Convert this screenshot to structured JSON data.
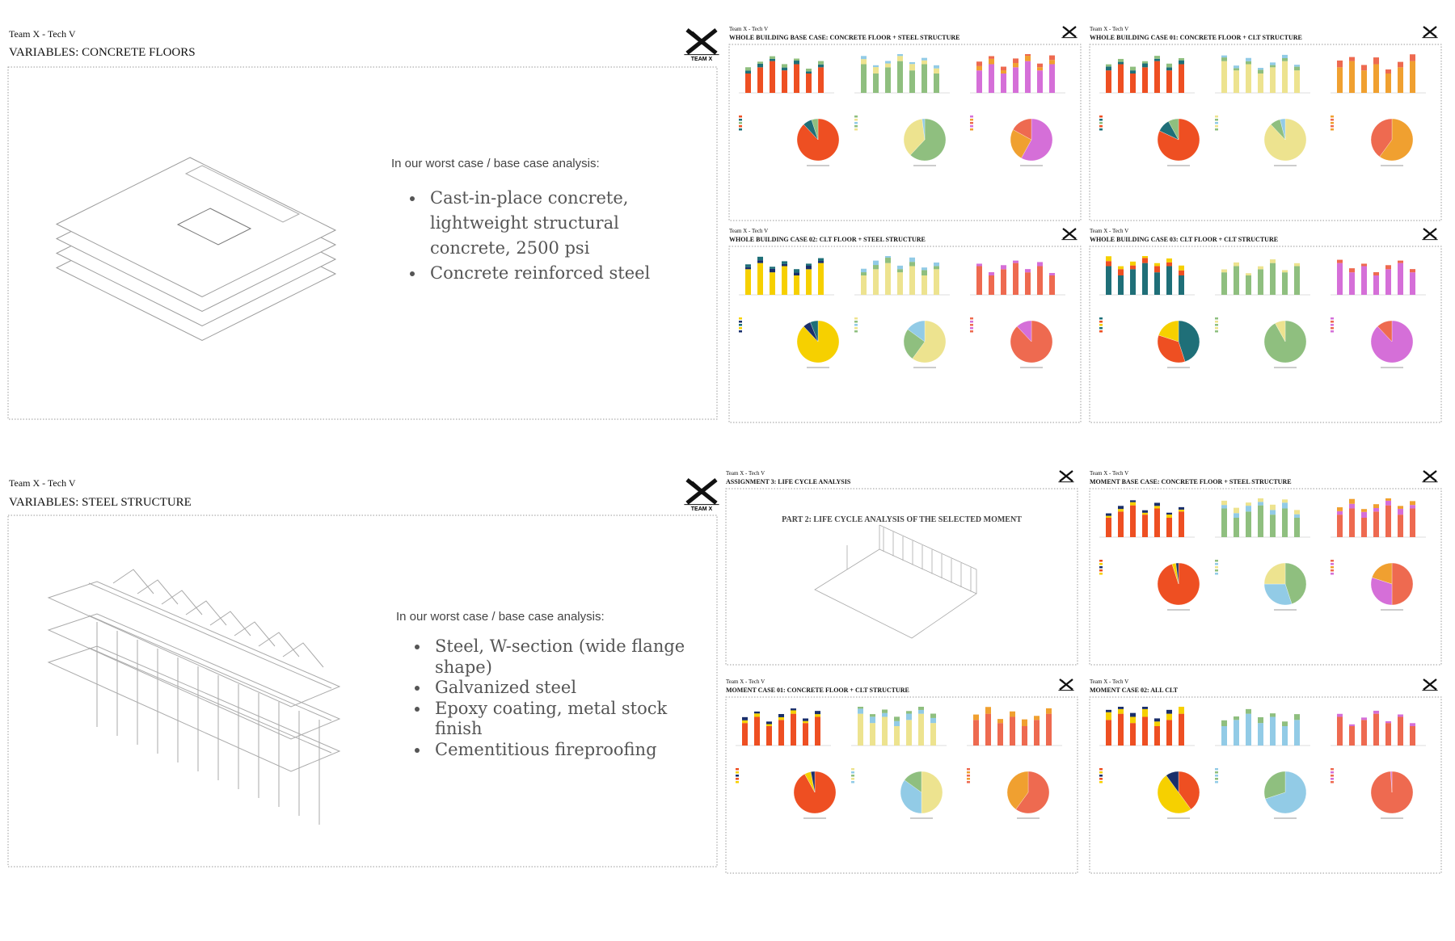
{
  "logo": "TEAM X",
  "slides": [
    {
      "team": "Team X - Tech V",
      "title": "VARIABLES: CONCRETE FLOORS",
      "intro": "In our worst case / base case analysis:",
      "bullets": [
        "Cast-in-place concrete, lightweight structural concrete, 2500 psi",
        "Concrete reinforced steel"
      ]
    },
    {
      "team": "Team X - Tech V",
      "title": "VARIABLES: STEEL STRUCTURE",
      "intro": "In our worst case / base case analysis:",
      "bullets": [
        "Steel, W-section (wide flange shape)",
        "Galvanized steel",
        "Epoxy coating, metal stock finish",
        "Cementitious fireproofing"
      ]
    }
  ],
  "thumbnails": [
    {
      "team": "Team X - Tech V",
      "title": "WHOLE BUILDING BASE CASE: CONCRETE FLOOR + STEEL STRUCTURE"
    },
    {
      "team": "Team X - Tech V",
      "title": "WHOLE BUILDING CASE 01: CONCRETE FLOOR + CLT STRUCTURE"
    },
    {
      "team": "Team X - Tech V",
      "title": "WHOLE BUILDING CASE 02: CLT FLOOR + STEEL STRUCTURE"
    },
    {
      "team": "Team X - Tech V",
      "title": "WHOLE BUILDING CASE 03: CLT FLOOR + CLT STRUCTURE"
    },
    {
      "team": "Team X - Tech V",
      "title": "ASSIGNMENT 3: LIFE CYCLE ANALYSIS",
      "subtitle": "PART 2: LIFE CYCLE ANALYSIS OF THE SELECTED MOMENT"
    },
    {
      "team": "Team X - Tech V",
      "title": "MOMENT BASE CASE: CONCRETE FLOOR + STEEL STRUCTURE"
    },
    {
      "team": "Team X - Tech V",
      "title": "MOMENT CASE 01: CONCRETE FLOOR + CLT STRUCTURE"
    },
    {
      "team": "Team X - Tech V",
      "title": "MOMENT CASE 02: ALL CLT"
    }
  ]
}
